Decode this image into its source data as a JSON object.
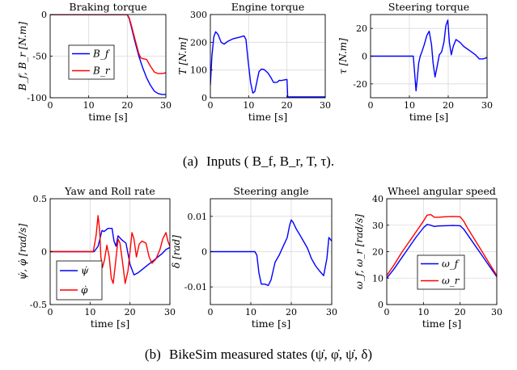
{
  "colors": {
    "blue": "#0000ff",
    "red": "#ff0000",
    "axis": "#000000",
    "grid": "#d9d9d9"
  },
  "captions": {
    "a_label": "(a)",
    "a_text": "Inputs ( B_f, B_r, T, τ).",
    "b_label": "(b)",
    "b_text": "BikeSim measured states (ψ̇, φ̇, ψ̇, δ)"
  },
  "chart_data": [
    {
      "id": "braking",
      "type": "line",
      "title": "Braking torque",
      "xlabel": "time [s]",
      "ylabel": "B_f, B_r [N.m]",
      "xlim": [
        0,
        30
      ],
      "ylim": [
        -100,
        0
      ],
      "xticks": [
        0,
        10,
        20,
        30
      ],
      "yticks": [
        -100,
        -50,
        0
      ],
      "xtick_labels": [
        "0",
        "10",
        "20",
        "30"
      ],
      "ytick_labels": [
        "-100",
        "-50",
        "0"
      ],
      "grid": true,
      "legend": {
        "position": "middle-left",
        "entries": [
          "B_f",
          "B_r"
        ]
      },
      "series": [
        {
          "name": "B_f",
          "color": "#0000ff",
          "x": [
            0,
            20,
            20.5,
            21,
            22,
            23,
            24,
            25,
            26,
            27,
            28,
            29,
            30
          ],
          "y": [
            0,
            0,
            -5,
            -14,
            -33,
            -50,
            -64,
            -76,
            -85,
            -92,
            -95,
            -96,
            -96
          ]
        },
        {
          "name": "B_r",
          "color": "#ff0000",
          "x": [
            0,
            20,
            20.5,
            21,
            22,
            23,
            23.5,
            24,
            25,
            26,
            27,
            28,
            29,
            30
          ],
          "y": [
            0,
            0,
            -4,
            -12,
            -30,
            -47,
            -52,
            -53,
            -54,
            -62,
            -69,
            -71,
            -71,
            -70
          ]
        }
      ]
    },
    {
      "id": "engine",
      "type": "line",
      "title": "Engine torque",
      "xlabel": "time [s]",
      "ylabel": "T [N.m]",
      "xlim": [
        0,
        30
      ],
      "ylim": [
        0,
        300
      ],
      "xticks": [
        0,
        10,
        20,
        30
      ],
      "yticks": [
        0,
        100,
        200,
        300
      ],
      "xtick_labels": [
        "0",
        "10",
        "20",
        "30"
      ],
      "ytick_labels": [
        "0",
        "100",
        "200",
        "300"
      ],
      "grid": true,
      "series": [
        {
          "name": "",
          "color": "#0000ff",
          "x": [
            0,
            0.4,
            0.9,
            1.4,
            2,
            2.8,
            3.6,
            4.5,
            6,
            7.5,
            8.8,
            9.3,
            9.8,
            10.5,
            11.1,
            11.6,
            12.1,
            12.7,
            13.3,
            14,
            15,
            15.8,
            16.5,
            17.5,
            18,
            18.5,
            19.2,
            20,
            20.2,
            30
          ],
          "y": [
            45,
            150,
            220,
            238,
            228,
            200,
            193,
            203,
            213,
            218,
            223,
            210,
            140,
            55,
            17,
            22,
            55,
            94,
            103,
            102,
            90,
            73,
            55,
            56,
            63,
            62,
            64,
            66,
            3,
            3
          ]
        }
      ]
    },
    {
      "id": "steering-torque",
      "type": "line",
      "title": "Steering torque",
      "xlabel": "time [s]",
      "ylabel": "τ [N.m]",
      "xlim": [
        0,
        30
      ],
      "ylim": [
        -30,
        30
      ],
      "xticks": [
        0,
        10,
        20,
        30
      ],
      "yticks": [
        -20,
        0,
        20
      ],
      "xtick_labels": [
        "0",
        "10",
        "20",
        "30"
      ],
      "ytick_labels": [
        "-20",
        "0",
        "20"
      ],
      "grid": true,
      "series": [
        {
          "name": "",
          "color": "#0000ff",
          "x": [
            0,
            11,
            11.3,
            11.7,
            12,
            12.4,
            12.8,
            13.2,
            13.8,
            14.5,
            15.1,
            15.7,
            16.1,
            16.6,
            17.1,
            17.7,
            18.3,
            18.9,
            19.4,
            19.9,
            20.3,
            20.8,
            21.3,
            22,
            23,
            24,
            25.5,
            27,
            28,
            29,
            30
          ],
          "y": [
            0,
            0,
            -10,
            -25,
            -17,
            -5,
            0,
            3,
            8,
            15,
            18,
            8,
            -5,
            -15,
            -8,
            1,
            3,
            10,
            22,
            26,
            10,
            1,
            7,
            12,
            10,
            7,
            4,
            1,
            -2,
            -2,
            -1
          ]
        }
      ]
    },
    {
      "id": "yaw-roll",
      "type": "line",
      "title": "Yaw and Roll rate",
      "xlabel": "time [s]",
      "ylabel": "ψ̇, φ̇ [rad/s]",
      "xlim": [
        0,
        30
      ],
      "ylim": [
        -0.5,
        0.5
      ],
      "xticks": [
        0,
        10,
        20,
        30
      ],
      "yticks": [
        -0.5,
        0,
        0.5
      ],
      "xtick_labels": [
        "0",
        "10",
        "20",
        "30"
      ],
      "ytick_labels": [
        "-0.5",
        "0",
        "0.5"
      ],
      "grid": true,
      "legend": {
        "position": "bottom-left",
        "entries": [
          "ψ̇",
          "φ̇"
        ]
      },
      "series": [
        {
          "name": "ψ̇",
          "color": "#0000ff",
          "x": [
            0,
            11,
            12,
            13,
            13.5,
            14.5,
            15.5,
            16,
            16.5,
            17,
            18,
            19,
            20,
            21,
            22,
            23,
            24,
            25,
            26,
            27,
            28,
            29,
            30
          ],
          "y": [
            0,
            0,
            0.05,
            0.2,
            0.19,
            0.22,
            0.22,
            0.1,
            0.05,
            0.15,
            0.11,
            0.08,
            -0.12,
            -0.22,
            -0.2,
            -0.17,
            -0.14,
            -0.11,
            -0.08,
            -0.05,
            -0.02,
            0.02,
            0.04
          ]
        },
        {
          "name": "φ̇",
          "color": "#ff0000",
          "x": [
            0,
            10.8,
            11.5,
            12,
            12.4,
            12.7,
            13.1,
            13.6,
            14.2,
            14.8,
            15.3,
            15.8,
            16.4,
            17,
            17.5,
            18.2,
            18.8,
            19.5,
            20,
            20.5,
            21,
            21.6,
            22.3,
            23,
            24,
            24.8,
            25.5,
            26.5,
            27.5,
            28.2,
            29,
            29.5,
            30
          ],
          "y": [
            0,
            0,
            0.15,
            0.34,
            0.2,
            -0.05,
            -0.15,
            -0.08,
            0.06,
            -0.05,
            -0.25,
            -0.3,
            -0.1,
            0.12,
            0.08,
            -0.12,
            -0.3,
            -0.18,
            0,
            0.18,
            0.12,
            -0.05,
            0.07,
            0.1,
            0.08,
            -0.05,
            -0.11,
            -0.07,
            0.02,
            0.12,
            0.18,
            0.1,
            0.05
          ]
        }
      ]
    },
    {
      "id": "steering-angle",
      "type": "line",
      "title": "Steering angle",
      "xlabel": "time [s]",
      "ylabel": "δ [rad]",
      "xlim": [
        0,
        30
      ],
      "ylim": [
        -0.015,
        0.015
      ],
      "xticks": [
        0,
        10,
        20,
        30
      ],
      "yticks": [
        -0.01,
        0,
        0.01
      ],
      "xtick_labels": [
        "0",
        "10",
        "20",
        "30"
      ],
      "ytick_labels": [
        "-0.01",
        "0",
        "0.01"
      ],
      "grid": true,
      "series": [
        {
          "name": "",
          "color": "#0000ff",
          "x": [
            0,
            11,
            11.5,
            12,
            12.6,
            13.5,
            14.3,
            15,
            16,
            17,
            18,
            19,
            19.6,
            20,
            20.5,
            21.2,
            22,
            23,
            24,
            25,
            26,
            27,
            28,
            28.8,
            29.3,
            30
          ],
          "y": [
            0,
            0,
            -0.001,
            -0.006,
            -0.0092,
            -0.0092,
            -0.0096,
            -0.008,
            -0.003,
            -0.001,
            0.0015,
            0.004,
            0.0075,
            0.009,
            0.0082,
            0.0065,
            0.005,
            0.003,
            0.001,
            -0.002,
            -0.004,
            -0.0055,
            -0.0068,
            -0.002,
            0.004,
            0.003
          ]
        }
      ]
    },
    {
      "id": "wheel-speed",
      "type": "line",
      "title": "Wheel angular speed",
      "xlabel": "time [s]",
      "ylabel": "ω_f, ω_r [rad/s]",
      "xlim": [
        0,
        30
      ],
      "ylim": [
        0,
        40
      ],
      "xticks": [
        0,
        10,
        20,
        30
      ],
      "yticks": [
        0,
        10,
        20,
        30,
        40
      ],
      "xtick_labels": [
        "0",
        "10",
        "20",
        "30"
      ],
      "ytick_labels": [
        "0",
        "10",
        "20",
        "30",
        "40"
      ],
      "grid": true,
      "legend": {
        "position": "bottom-center",
        "entries": [
          "ω_f",
          "ω_r"
        ]
      },
      "series": [
        {
          "name": "ω_f",
          "color": "#0000ff",
          "x": [
            0,
            2,
            4,
            6,
            8,
            10,
            11,
            12,
            13,
            14,
            16,
            18,
            20,
            21,
            22,
            24,
            26,
            28,
            30
          ],
          "y": [
            10,
            13.5,
            17.5,
            21.5,
            25.5,
            29,
            30.3,
            30,
            29.5,
            29.7,
            29.8,
            29.9,
            29.8,
            28.5,
            26.5,
            22.5,
            18.5,
            14.5,
            10.5
          ]
        },
        {
          "name": "ω_r",
          "color": "#ff0000",
          "x": [
            0,
            2,
            4,
            6,
            8,
            10,
            11,
            12,
            13,
            14,
            16,
            18,
            20,
            21,
            22,
            24,
            26,
            28,
            30
          ],
          "y": [
            11,
            15,
            19.5,
            23.5,
            27.5,
            31.5,
            33.8,
            34,
            33,
            33,
            33.2,
            33.3,
            33.2,
            31.5,
            29,
            24.5,
            20,
            15.5,
            11
          ]
        }
      ]
    }
  ]
}
